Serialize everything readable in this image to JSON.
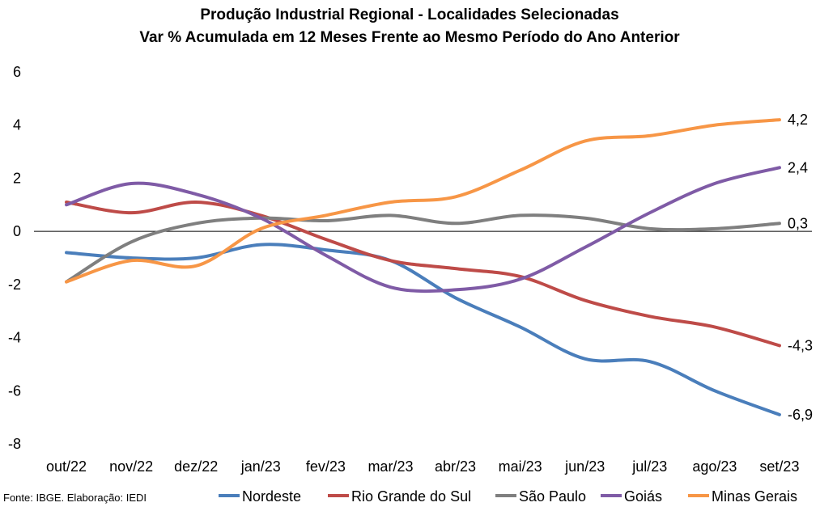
{
  "chart_data": {
    "type": "line",
    "title": "Produção Industrial Regional - Localidades Selecionadas",
    "subtitle": "Var % Acumulada em 12 Meses Frente ao Mesmo Período do Ano Anterior",
    "categories": [
      "out/22",
      "nov/22",
      "dez/22",
      "jan/23",
      "fev/23",
      "mar/23",
      "abr/23",
      "mai/23",
      "jun/23",
      "jul/23",
      "ago/23",
      "set/23"
    ],
    "ylim": [
      -8,
      6
    ],
    "yticks": [
      -8,
      -6,
      -4,
      -2,
      0,
      2,
      4,
      6
    ],
    "grid": false,
    "legend": "bottom",
    "series": [
      {
        "name": "Nordeste",
        "color": "#4A7EBB",
        "values": [
          -0.8,
          -1.0,
          -1.0,
          -0.5,
          -0.7,
          -1.1,
          -2.5,
          -3.6,
          -4.8,
          -4.9,
          -6.0,
          -6.9
        ],
        "end_label": "-6,9"
      },
      {
        "name": "Rio Grande do Sul",
        "color": "#BE4B48",
        "values": [
          1.1,
          0.7,
          1.1,
          0.6,
          -0.3,
          -1.1,
          -1.4,
          -1.7,
          -2.6,
          -3.2,
          -3.6,
          -4.3
        ],
        "end_label": "-4,3"
      },
      {
        "name": "São Paulo",
        "color": "#7F7F7F",
        "values": [
          -1.9,
          -0.4,
          0.3,
          0.5,
          0.4,
          0.6,
          0.3,
          0.6,
          0.5,
          0.1,
          0.1,
          0.3
        ],
        "end_label": "0,3"
      },
      {
        "name": "Goiás",
        "color": "#7F5BA6",
        "values": [
          1.0,
          1.8,
          1.4,
          0.5,
          -0.9,
          -2.1,
          -2.2,
          -1.8,
          -0.6,
          0.7,
          1.8,
          2.4
        ],
        "end_label": "2,4"
      },
      {
        "name": "Minas Gerais",
        "color": "#F79646",
        "values": [
          -1.9,
          -1.1,
          -1.3,
          0.1,
          0.6,
          1.1,
          1.3,
          2.3,
          3.4,
          3.6,
          4.0,
          4.2
        ],
        "end_label": "4,2"
      }
    ],
    "source": "Fonte: IBGE. Elaboração: IEDI"
  }
}
